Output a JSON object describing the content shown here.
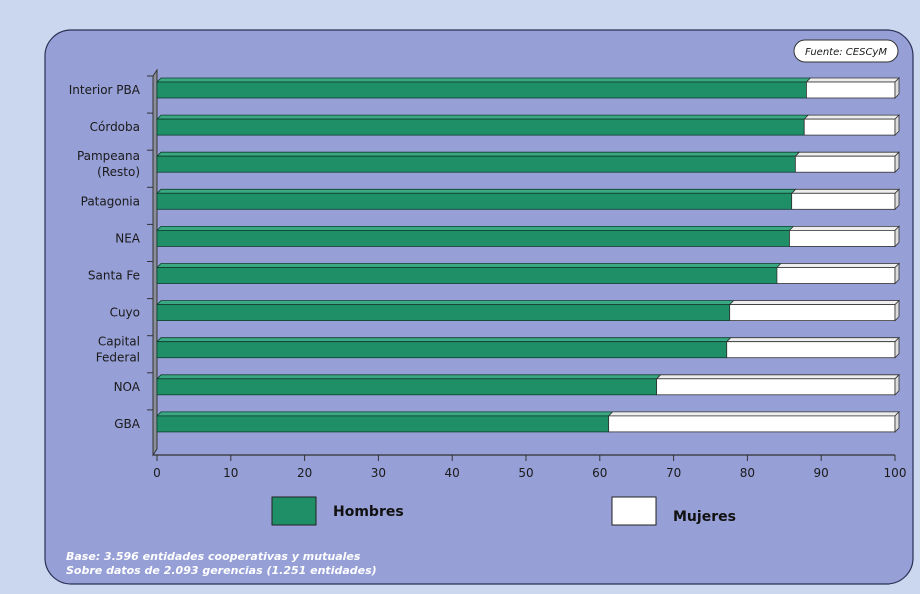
{
  "source": "Fuente: CESCyM",
  "notes": [
    "Base: 3.596 entidades cooperativas y mutuales",
    "Sobre datos de 2.093 gerencias (1.251 entidades)"
  ],
  "colors": {
    "background": "#cbd7ef",
    "panel": "#969fd6",
    "hombres": "#1f8f68",
    "mujeres": "#ffffff"
  },
  "chart_data": {
    "type": "bar",
    "orientation": "horizontal",
    "stacked": true,
    "categories": [
      [
        "Interior PBA"
      ],
      [
        "Córdoba"
      ],
      [
        "Pampeana",
        "(Resto)"
      ],
      [
        "Patagonia"
      ],
      [
        "NEA"
      ],
      [
        "Santa Fe"
      ],
      [
        "Cuyo"
      ],
      [
        "Capital",
        "Federal"
      ],
      [
        "NOA"
      ],
      [
        "GBA"
      ]
    ],
    "series": [
      {
        "name": "Hombres",
        "color": "#1f8f68",
        "values": [
          88,
          87.7,
          86.5,
          86,
          85.7,
          84,
          77.6,
          77.2,
          67.7,
          61.2
        ]
      },
      {
        "name": "Mujeres",
        "color": "#ffffff",
        "values": [
          12,
          12.3,
          13.5,
          14,
          14.3,
          16,
          22.4,
          22.8,
          32.3,
          38.8
        ]
      }
    ],
    "xlim": [
      0,
      100
    ],
    "xticks": [
      0,
      10,
      20,
      30,
      40,
      50,
      60,
      70,
      80,
      90,
      100
    ],
    "legend_position": "bottom"
  }
}
